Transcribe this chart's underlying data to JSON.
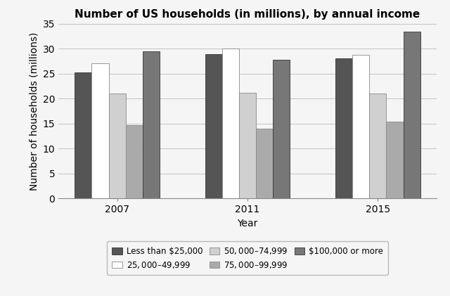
{
  "title": "Number of US households (in millions), by annual income",
  "xlabel": "Year",
  "ylabel": "Number of households (millions)",
  "years": [
    "2007",
    "2011",
    "2015"
  ],
  "categories": [
    "Less than $25,000",
    "$25,000–$49,999",
    "$50,000–$74,999",
    "$75,000–$99,999",
    "$100,000 or more"
  ],
  "values": {
    "Less than $25,000": [
      25.3,
      28.9,
      28.0
    ],
    "$25,000–$49,999": [
      27.0,
      30.0,
      28.8
    ],
    "$50,000–$74,999": [
      21.0,
      21.2,
      21.0
    ],
    "$75,000–$99,999": [
      14.7,
      14.0,
      15.3
    ],
    "$100,000 or more": [
      29.5,
      27.8,
      33.4
    ]
  },
  "colors": [
    "#555555",
    "#ffffff",
    "#d0d0d0",
    "#aaaaaa",
    "#777777"
  ],
  "edge_colors": [
    "#333333",
    "#888888",
    "#888888",
    "#888888",
    "#333333"
  ],
  "ylim": [
    0,
    35
  ],
  "yticks": [
    0,
    5,
    10,
    15,
    20,
    25,
    30,
    35
  ],
  "bar_width": 0.13,
  "legend_box_color": "#f5f5f5",
  "background_color": "#f5f5f5",
  "title_fontsize": 11,
  "axis_label_fontsize": 10,
  "tick_fontsize": 10,
  "legend_fontsize": 8.5
}
